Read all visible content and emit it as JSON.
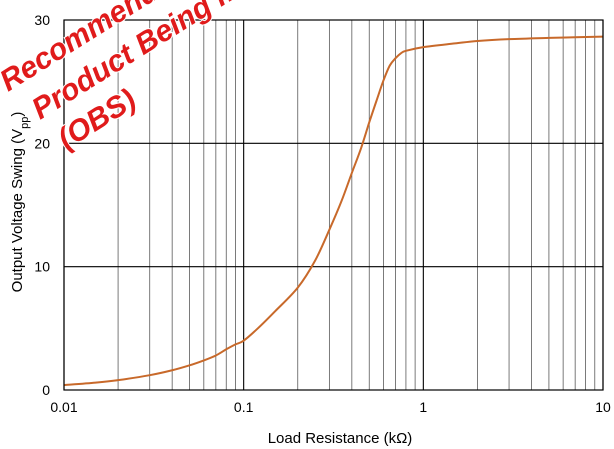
{
  "chart_data": {
    "type": "line",
    "title": "",
    "xlabel": "Load Resistance (kΩ)",
    "ylabel": "Output Voltage Swing (V",
    "ylabel_sub": "pp",
    "ylabel_close": ")",
    "x_scale": "log",
    "xlim": [
      0.01,
      10
    ],
    "ylim": [
      0,
      30
    ],
    "x_ticks": [
      {
        "value": 0.01,
        "label": "0.01"
      },
      {
        "value": 0.1,
        "label": "0.1"
      },
      {
        "value": 1,
        "label": "1"
      },
      {
        "value": 10,
        "label": "10"
      }
    ],
    "y_ticks": [
      {
        "value": 0,
        "label": "0"
      },
      {
        "value": 10,
        "label": "10"
      },
      {
        "value": 20,
        "label": "20"
      },
      {
        "value": 30,
        "label": "30"
      }
    ],
    "grid": true,
    "series": [
      {
        "color": "#c8692a",
        "x": [
          0.01,
          0.015,
          0.02,
          0.03,
          0.04,
          0.05,
          0.06,
          0.07,
          0.08,
          0.09,
          0.1,
          0.12,
          0.15,
          0.2,
          0.25,
          0.3,
          0.35,
          0.4,
          0.45,
          0.5,
          0.55,
          0.6,
          0.65,
          0.7,
          0.75,
          0.8,
          1,
          1.5,
          2,
          3,
          5,
          7,
          10
        ],
        "y": [
          0.4,
          0.6,
          0.8,
          1.2,
          1.6,
          2.0,
          2.4,
          2.8,
          3.3,
          3.7,
          4.0,
          5.0,
          6.4,
          8.3,
          10.5,
          13.0,
          15.3,
          17.6,
          19.6,
          21.7,
          23.5,
          25.1,
          26.3,
          26.9,
          27.3,
          27.5,
          27.8,
          28.1,
          28.3,
          28.45,
          28.55,
          28.6,
          28.65
        ]
      }
    ]
  },
  "watermark": {
    "lines": [
      "Recommended for New Designs",
      "Product Being moved",
      "(OBS)"
    ],
    "color": "#e01b1b"
  }
}
